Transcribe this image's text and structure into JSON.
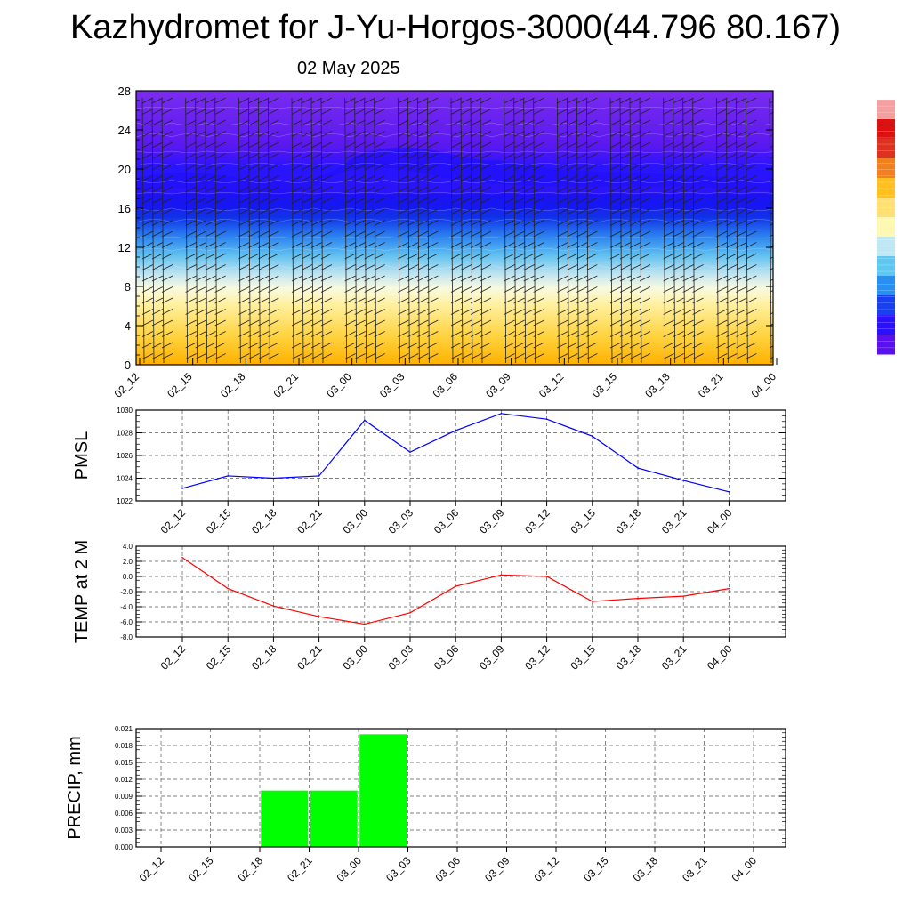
{
  "title": "Kazhydromet for J-Yu-Horgos-3000(44.796 80.167)",
  "date": "02 May 2025",
  "time_labels": [
    "02_12",
    "02_15",
    "02_18",
    "02_21",
    "03_00",
    "03_03",
    "03_06",
    "03_09",
    "03_12",
    "03_15",
    "03_18",
    "03_21",
    "04_00"
  ],
  "colors": {
    "pmsl_line": "#0000ff",
    "temp_line": "#ff0000",
    "precip_bar": "#00ff00",
    "grid": "#555555"
  },
  "chart_data": [
    {
      "type": "heatmap",
      "title": "",
      "ylabel": "",
      "y_ticks": [
        0,
        4,
        8,
        12,
        16,
        20,
        24,
        28
      ],
      "ylim": [
        0,
        28
      ],
      "note_on_content": "cross-section shading with wind barbs; colour bar with no tick labels",
      "colormap": [
        "#5a10f0",
        "#2a10ff",
        "#1840f0",
        "#2890f0",
        "#60c8f0",
        "#c0e8f4",
        "#fff8b0",
        "#ffe070",
        "#ffc020",
        "#f08020",
        "#e03020",
        "#e01010",
        "#f4a0a0"
      ]
    },
    {
      "type": "line",
      "ylabel": "PMSL",
      "x": [
        "02_12",
        "02_15",
        "02_18",
        "02_21",
        "03_00",
        "03_03",
        "03_06",
        "03_09",
        "03_12",
        "03_15",
        "03_18",
        "03_21",
        "04_00"
      ],
      "series": [
        {
          "values": [
            1023.1,
            1024.2,
            1024.0,
            1024.2,
            1029.1,
            1026.3,
            1028.2,
            1029.7,
            1029.2,
            1027.7,
            1024.9,
            1023.8,
            1022.8
          ]
        }
      ],
      "ylim": [
        1022,
        1030
      ],
      "y_ticks": [
        "1022",
        "1024",
        "1026",
        "1028",
        "1030"
      ],
      "grid": true
    },
    {
      "type": "line",
      "ylabel": "TEMP at 2 M",
      "x": [
        "02_12",
        "02_15",
        "02_18",
        "02_21",
        "03_00",
        "03_03",
        "03_06",
        "03_09",
        "03_12",
        "03_15",
        "03_18",
        "03_21",
        "04_00"
      ],
      "series": [
        {
          "values": [
            2.5,
            -1.6,
            -3.9,
            -5.3,
            -6.3,
            -4.8,
            -1.3,
            0.2,
            0.0,
            -3.3,
            -2.9,
            -2.6,
            -1.6
          ]
        }
      ],
      "ylim": [
        -8,
        4
      ],
      "y_ticks": [
        "-8.0",
        "-6.0",
        "-4.0",
        "-2.0",
        "0.0",
        "2.0",
        "4.0"
      ],
      "grid": true
    },
    {
      "type": "bar",
      "ylabel": "PRECIP, mm",
      "categories": [
        "02_12",
        "02_15",
        "02_18",
        "02_21",
        "03_00",
        "03_03",
        "03_06",
        "03_09",
        "03_12",
        "03_15",
        "03_18",
        "03_21",
        "04_00"
      ],
      "values": [
        0,
        0,
        0.01,
        0.01,
        0.02,
        0,
        0,
        0,
        0,
        0,
        0,
        0,
        0
      ],
      "ylim": [
        0,
        0.021
      ],
      "y_ticks": [
        "0.000",
        "0.003",
        "0.006",
        "0.009",
        "0.012",
        "0.015",
        "0.018",
        "0.021"
      ],
      "grid": true
    }
  ]
}
